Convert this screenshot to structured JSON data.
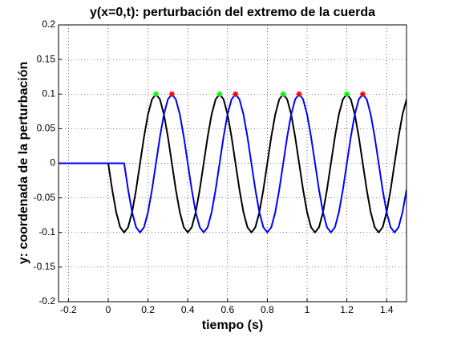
{
  "chart_data": {
    "type": "line",
    "title": "y(x=0,t): perturbación del extremo de la cuerda",
    "x_label": "tiempo (s)",
    "y_label": "y: coordenada de la perturbación",
    "x": [
      -0.26,
      -0.24,
      -0.22,
      -0.2,
      -0.18,
      -0.16,
      -0.14,
      -0.12,
      -0.1,
      -0.08,
      -0.06,
      -0.04,
      -0.02,
      0,
      0.02,
      0.04,
      0.06,
      0.08,
      0.1,
      0.12,
      0.14,
      0.16,
      0.18,
      0.2,
      0.22,
      0.24,
      0.26,
      0.28,
      0.3,
      0.32,
      0.34,
      0.36,
      0.38,
      0.4,
      0.42,
      0.44,
      0.46,
      0.48,
      0.5,
      0.52,
      0.54,
      0.56,
      0.58,
      0.6,
      0.62,
      0.64,
      0.66,
      0.68,
      0.7,
      0.72,
      0.74,
      0.76,
      0.78,
      0.8,
      0.82,
      0.84,
      0.86,
      0.88,
      0.9,
      0.92,
      0.94,
      0.96,
      0.98,
      1,
      1.02,
      1.04,
      1.06,
      1.08,
      1.1,
      1.12,
      1.14,
      1.16,
      1.18,
      1.2,
      1.22,
      1.24,
      1.26,
      1.28,
      1.3,
      1.32,
      1.34,
      1.36,
      1.38,
      1.4,
      1.42,
      1.44,
      1.46,
      1.48,
      1.5
    ],
    "series": [
      {
        "color": "#000000",
        "values": [
          0,
          0,
          0,
          0,
          0,
          0,
          0,
          0,
          0,
          0,
          0,
          0,
          0,
          0,
          -0.0383,
          -0.0707,
          -0.0924,
          -0.1,
          -0.0924,
          -0.0707,
          -0.0383,
          0,
          0.0383,
          0.0707,
          0.0924,
          0.1,
          0.0924,
          0.0707,
          0.0383,
          0,
          -0.0383,
          -0.0707,
          -0.0924,
          -0.1,
          -0.0924,
          -0.0707,
          -0.0383,
          0,
          0.0383,
          0.0707,
          0.0924,
          0.1,
          0.0924,
          0.0707,
          0.0383,
          0,
          -0.0383,
          -0.0707,
          -0.0924,
          -0.1,
          -0.0924,
          -0.0707,
          -0.0383,
          0,
          0.0383,
          0.0707,
          0.0924,
          0.1,
          0.0924,
          0.0707,
          0.0383,
          0,
          -0.0383,
          -0.0707,
          -0.0924,
          -0.1,
          -0.0924,
          -0.0707,
          -0.0383,
          0,
          0.0383,
          0.0707,
          0.0924,
          0.1,
          0.0924,
          0.0707,
          0.0383,
          0,
          -0.0383,
          -0.0707,
          -0.0924,
          -0.1,
          -0.0924,
          -0.0707,
          -0.0383,
          0,
          0.0383,
          0.0707,
          0.0924
        ]
      },
      {
        "color": "#0000ff",
        "values": [
          0,
          0,
          0,
          0,
          0,
          0,
          0,
          0,
          0,
          0,
          0,
          0,
          0,
          0,
          0,
          0,
          0,
          0,
          -0.0383,
          -0.0707,
          -0.0924,
          -0.1,
          -0.0924,
          -0.0707,
          -0.0383,
          0,
          0.0383,
          0.0707,
          0.0924,
          0.1,
          0.0924,
          0.0707,
          0.0383,
          0,
          -0.0383,
          -0.0707,
          -0.0924,
          -0.1,
          -0.0924,
          -0.0707,
          -0.0383,
          0,
          0.0383,
          0.0707,
          0.0924,
          0.1,
          0.0924,
          0.0707,
          0.0383,
          0,
          -0.0383,
          -0.0707,
          -0.0924,
          -0.1,
          -0.0924,
          -0.0707,
          -0.0383,
          0,
          0.0383,
          0.0707,
          0.0924,
          0.1,
          0.0924,
          0.0707,
          0.0383,
          0,
          -0.0383,
          -0.0707,
          -0.0924,
          -0.1,
          -0.0924,
          -0.0707,
          -0.0383,
          0,
          0.0383,
          0.0707,
          0.0924,
          0.1,
          0.0924,
          0.0707,
          0.0383,
          0,
          -0.0383,
          -0.0707,
          -0.0924,
          -0.1,
          -0.0924,
          -0.0707,
          -0.0383
        ]
      },
      {
        "color": "#00ff00",
        "marker": "star",
        "x": [
          0.24,
          0.56,
          0.88,
          1.2
        ],
        "values": [
          0.1,
          0.1,
          0.1,
          0.1
        ]
      },
      {
        "color": "#ff0000",
        "marker": "star",
        "x": [
          0.32,
          0.64,
          0.96,
          1.28
        ],
        "values": [
          0.1,
          0.1,
          0.1,
          0.1
        ]
      }
    ],
    "xlim": [
      -0.25,
      1.5
    ],
    "ylim": [
      -0.2,
      0.2
    ],
    "xticks": [
      -0.2,
      0,
      0.2,
      0.4,
      0.6,
      0.8,
      1,
      1.2,
      1.4
    ],
    "yticks": [
      -0.2,
      -0.15,
      -0.1,
      -0.05,
      0,
      0.05,
      0.1,
      0.15,
      0.2
    ],
    "grid": true
  }
}
